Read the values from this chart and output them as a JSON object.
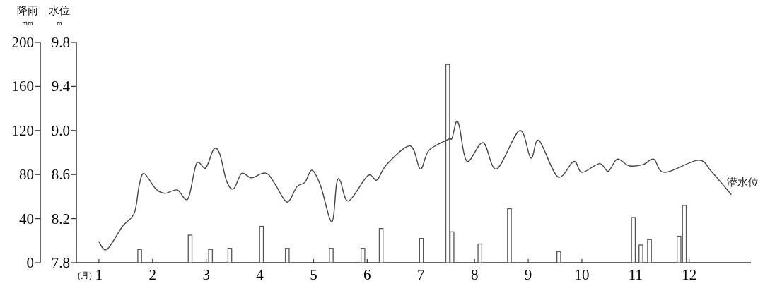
{
  "chart_data": {
    "type": "bar",
    "xlabel": "(月)",
    "ylabel": "降雨",
    "y2label": "水位",
    "annotations": [
      "mm",
      "m"
    ],
    "xlim": [
      0.58,
      13.15
    ],
    "xticks": [
      1,
      2,
      3,
      4,
      5,
      6,
      7,
      8,
      9,
      10,
      11,
      12
    ],
    "ylim": [
      0,
      200
    ],
    "yticks": [
      0,
      40,
      80,
      120,
      160,
      200
    ],
    "y2lim": [
      7.8,
      9.8
    ],
    "y2ticks": [
      7.8,
      8.2,
      8.6,
      {
        "value": 9,
        "label": "9.0"
      },
      9.4,
      9.8
    ],
    "series": [
      {
        "color": "#555555",
        "x": [
          1.76,
          2.7,
          3.08,
          3.44,
          4.03,
          4.51,
          5.33,
          5.92,
          6.26,
          7.01,
          7.5,
          7.58,
          8.1,
          8.65,
          9.57,
          10.96,
          11.1,
          11.26,
          11.81,
          11.91
        ],
        "values": [
          12,
          25,
          12,
          13,
          33,
          13,
          13,
          13,
          31,
          22,
          180,
          28,
          17,
          49,
          10,
          41,
          16,
          21,
          24,
          52
        ]
      },
      {
        "type": "line",
        "axis": "y2",
        "name": "潜水位",
        "color": "#444444",
        "x": [
          1.0,
          1.15,
          1.44,
          1.66,
          1.75,
          1.84,
          2.06,
          2.23,
          2.46,
          2.66,
          2.82,
          2.99,
          3.14,
          3.25,
          3.38,
          3.51,
          3.66,
          3.84,
          4.04,
          4.16,
          4.3,
          4.51,
          4.69,
          4.84,
          4.97,
          5.13,
          5.34,
          5.43,
          5.5,
          5.65,
          6.01,
          6.18,
          6.36,
          6.8,
          6.99,
          7.15,
          7.51,
          7.58,
          7.66,
          7.72,
          7.86,
          8.16,
          8.41,
          8.84,
          9.05,
          9.2,
          9.55,
          9.85,
          10.0,
          10.33,
          10.49,
          10.66,
          10.88,
          11.14,
          11.34,
          11.54,
          12.17,
          12.41,
          12.78
        ],
        "values": [
          7.99,
          7.92,
          8.13,
          8.25,
          8.5,
          8.61,
          8.47,
          8.43,
          8.46,
          8.38,
          8.7,
          8.66,
          8.83,
          8.79,
          8.54,
          8.47,
          8.61,
          8.57,
          8.61,
          8.6,
          8.5,
          8.35,
          8.49,
          8.53,
          8.64,
          8.5,
          8.17,
          8.52,
          8.54,
          8.36,
          8.59,
          8.55,
          8.69,
          8.86,
          8.65,
          8.82,
          8.92,
          8.93,
          9.08,
          9.03,
          8.72,
          8.89,
          8.65,
          9.0,
          8.75,
          8.91,
          8.58,
          8.72,
          8.62,
          8.7,
          8.63,
          8.74,
          8.68,
          8.69,
          8.74,
          8.62,
          8.73,
          8.63,
          8.42
        ]
      }
    ]
  }
}
